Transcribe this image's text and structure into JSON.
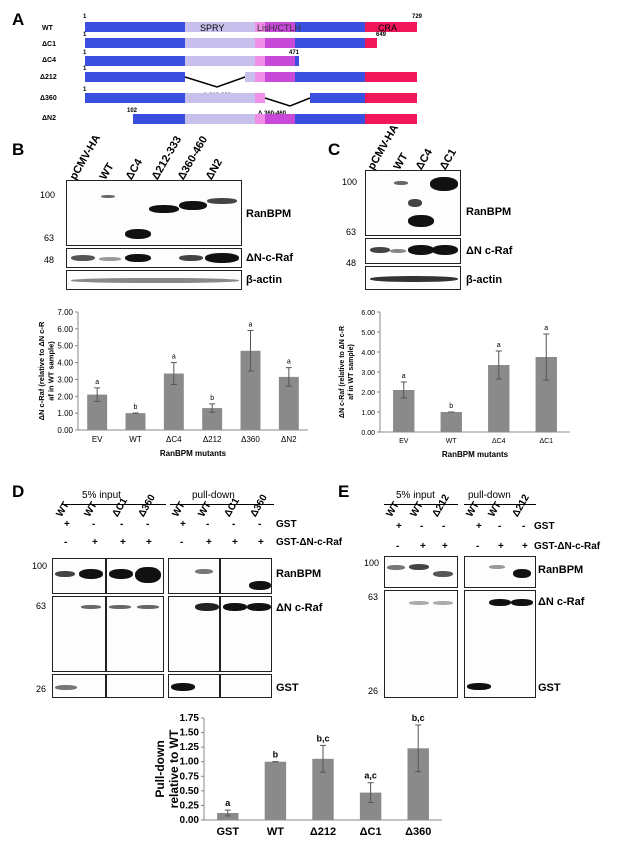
{
  "panels": {
    "A": "A",
    "B": "B",
    "C": "C",
    "D": "D",
    "E": "E"
  },
  "panelA": {
    "constructs": [
      {
        "name": "WT",
        "start": 1,
        "end": 729,
        "deletion": ""
      },
      {
        "name": "ΔC1",
        "start": 1,
        "end": 649,
        "deletion": ""
      },
      {
        "name": "ΔC4",
        "start": 1,
        "end": 471,
        "deletion": ""
      },
      {
        "name": "Δ212",
        "start": 1,
        "end": 729,
        "deletion": "Δ 212-333"
      },
      {
        "name": "Δ360",
        "start": 1,
        "end": 729,
        "deletion": "Δ 360-460"
      },
      {
        "name": "ΔN2",
        "start": 102,
        "end": 729,
        "deletion": ""
      }
    ],
    "domains": [
      "SPRY",
      "LisH/CTLH",
      "CRA"
    ],
    "colors": {
      "backbone": "#3a4fe0",
      "spry": "#c8c0ec",
      "lish": "#f08ee8",
      "ctlh": "#c848d8",
      "cra": "#f0185a"
    }
  },
  "panelB": {
    "lanes": [
      "pCMV-HA",
      "WT",
      "ΔC4",
      "Δ212-333",
      "Δ360-460",
      "ΔN2"
    ],
    "mw": [
      "100",
      "63",
      "48"
    ],
    "blots": [
      "RanBPM",
      "ΔN-c-Raf",
      "β-actin"
    ]
  },
  "panelC": {
    "lanes": [
      "pCMV-HA",
      "WT",
      "ΔC4",
      "ΔC1"
    ],
    "mw": [
      "100",
      "63",
      "48"
    ],
    "blots": [
      "RanBPM",
      "ΔN c-Raf",
      "β-actin"
    ]
  },
  "panelD": {
    "group_titles": [
      "5% input",
      "pull-down"
    ],
    "lanes": [
      "WT",
      "WT",
      "ΔC1",
      "Δ360",
      "WT",
      "WT",
      "ΔC1",
      "Δ360"
    ],
    "gst_row": [
      "+",
      "-",
      "-",
      "-",
      "+",
      "-",
      "-",
      "-"
    ],
    "gst_raf_row": [
      "-",
      "+",
      "+",
      "+",
      "-",
      "+",
      "+",
      "+"
    ],
    "row_labels": [
      "GST",
      "GST-ΔN-c-Raf"
    ],
    "mw": [
      "100",
      "63",
      "26"
    ],
    "blots": [
      "RanBPM",
      "ΔN c-Raf",
      "GST"
    ]
  },
  "panelE": {
    "group_titles": [
      "5% input",
      "pull-down"
    ],
    "lanes": [
      "WT",
      "WT",
      "Δ212",
      "WT",
      "WT",
      "Δ212"
    ],
    "gst_row": [
      "+",
      "-",
      "-",
      "+",
      "-",
      "-"
    ],
    "gst_raf_row": [
      "-",
      "+",
      "+",
      "-",
      "+",
      "+"
    ],
    "row_labels": [
      "GST",
      "GST-ΔN-c-Raf"
    ],
    "mw": [
      "100",
      "63",
      "26"
    ],
    "blots": [
      "RanBPM",
      "ΔN c-Raf",
      "GST"
    ]
  },
  "chart_data": [
    {
      "type": "bar",
      "panel": "B",
      "categories": [
        "EV",
        "WT",
        "ΔC4",
        "Δ212",
        "Δ360",
        "ΔN2"
      ],
      "values": [
        2.1,
        1.0,
        3.35,
        1.3,
        4.7,
        3.15
      ],
      "errors": [
        0.4,
        0.0,
        0.65,
        0.25,
        1.2,
        0.55
      ],
      "letters": [
        "a",
        "b",
        "a",
        "b",
        "a",
        "a"
      ],
      "xlabel": "RanBPM mutants",
      "ylabel": "ΔN c-Raf (relative to ΔN c-Raf in WT sample)",
      "ylim": [
        0,
        7
      ],
      "yticks": [
        "0.00",
        "1.00",
        "2.00",
        "3.00",
        "4.00",
        "5.00",
        "6.00",
        "7.00"
      ]
    },
    {
      "type": "bar",
      "panel": "C",
      "categories": [
        "EV",
        "WT",
        "ΔC4",
        "ΔC1"
      ],
      "values": [
        2.1,
        1.0,
        3.35,
        3.75
      ],
      "errors": [
        0.4,
        0.0,
        0.7,
        1.15
      ],
      "letters": [
        "a",
        "b",
        "a",
        "a"
      ],
      "xlabel": "RanBPM mutants",
      "ylabel": "ΔN c-Raf (relative to ΔN c-Raf in WT sample)",
      "ylim": [
        0,
        6
      ],
      "yticks": [
        "0.00",
        "1.00",
        "2.00",
        "3.00",
        "4.00",
        "5.00",
        "6.00"
      ]
    },
    {
      "type": "bar",
      "panel": "D/E",
      "categories": [
        "GST",
        "WT",
        "Δ212",
        "ΔC1",
        "Δ360"
      ],
      "values": [
        0.12,
        1.0,
        1.05,
        0.47,
        1.23
      ],
      "errors": [
        0.05,
        0.0,
        0.23,
        0.17,
        0.4
      ],
      "letters": [
        "a",
        "b",
        "b,c",
        "a,c",
        "b,c"
      ],
      "xlabel": "",
      "ylabel": "Pull-down relative to WT",
      "ylim": [
        0,
        1.75
      ],
      "yticks": [
        "0.00",
        "0.25",
        "0.50",
        "0.75",
        "1.00",
        "1.25",
        "1.50",
        "1.75"
      ]
    }
  ]
}
